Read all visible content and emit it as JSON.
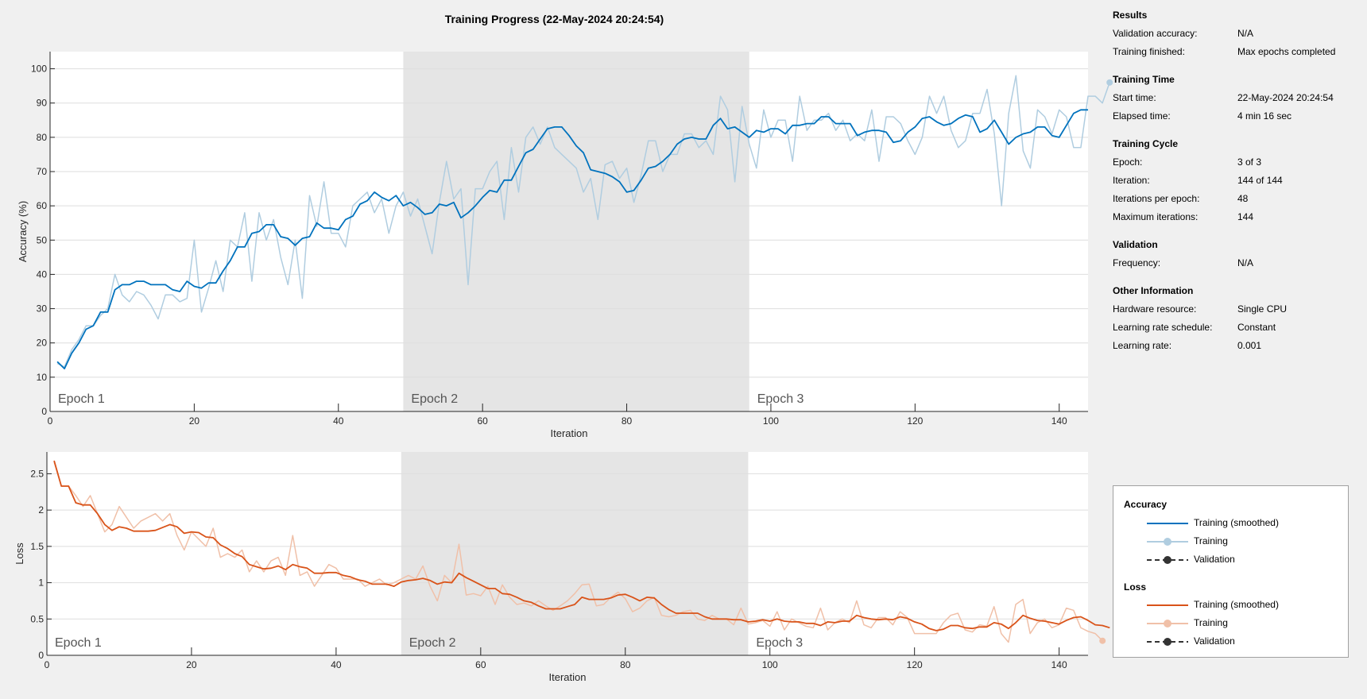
{
  "title": "Training Progress (22-May-2024 20:24:54)",
  "info": [
    {
      "title": "Results",
      "rows": [
        {
          "k": "Validation accuracy:",
          "v": "N/A"
        },
        {
          "k": "Training finished:",
          "v": "Max epochs completed"
        }
      ]
    },
    {
      "title": "Training Time",
      "rows": [
        {
          "k": "Start time:",
          "v": "22-May-2024 20:24:54"
        },
        {
          "k": "Elapsed time:",
          "v": "4 min 16 sec"
        }
      ]
    },
    {
      "title": "Training Cycle",
      "rows": [
        {
          "k": "Epoch:",
          "v": "3 of 3"
        },
        {
          "k": "Iteration:",
          "v": "144 of 144"
        },
        {
          "k": "Iterations per epoch:",
          "v": "48"
        },
        {
          "k": "Maximum iterations:",
          "v": "144"
        }
      ]
    },
    {
      "title": "Validation",
      "rows": [
        {
          "k": "Frequency:",
          "v": "N/A"
        }
      ]
    },
    {
      "title": "Other Information",
      "rows": [
        {
          "k": "Hardware resource:",
          "v": "Single CPU"
        },
        {
          "k": "Learning rate schedule:",
          "v": "Constant"
        },
        {
          "k": "Learning rate:",
          "v": "0.001"
        }
      ]
    }
  ],
  "legend": {
    "accuracy_title": "Accuracy",
    "accuracy_items": [
      "Training (smoothed)",
      "Training",
      "Validation"
    ],
    "loss_title": "Loss",
    "loss_items": [
      "Training (smoothed)",
      "Training",
      "Validation"
    ]
  },
  "colors": {
    "acc_smoothed": "#0072bd",
    "acc_raw": "#b0cde0",
    "loss_smoothed": "#d95319",
    "loss_raw": "#f0c0a8",
    "validation": "#333333",
    "epoch_shade": "#e5e5e5",
    "grid": "#dedede"
  },
  "chart_data": [
    {
      "type": "line",
      "name": "accuracy",
      "xlabel": "Iteration",
      "ylabel": "Accuracy (%)",
      "xlim": [
        0,
        144
      ],
      "ylim": [
        0,
        105
      ],
      "xticks": [
        0,
        20,
        40,
        60,
        80,
        100,
        120,
        140
      ],
      "yticks": [
        0,
        10,
        20,
        30,
        40,
        50,
        60,
        70,
        80,
        90,
        100
      ],
      "epochs": [
        {
          "label": "Epoch 1",
          "start": 0,
          "end": 49,
          "shaded": false
        },
        {
          "label": "Epoch 2",
          "start": 49,
          "end": 97,
          "shaded": true
        },
        {
          "label": "Epoch 3",
          "start": 97,
          "end": 144,
          "shaded": false
        }
      ],
      "series": [
        {
          "name": "Training (smoothed)",
          "x_start": 1,
          "values": [
            14.5,
            12.5,
            17,
            20,
            24,
            25,
            29,
            29,
            35.5,
            37,
            37,
            38,
            38,
            37,
            37,
            37,
            35.5,
            35,
            38,
            36.5,
            36,
            37.5,
            37.5,
            41,
            44,
            48,
            48,
            52,
            52.5,
            54.5,
            54.5,
            51,
            50.5,
            48.5,
            50.5,
            51,
            55,
            53.5,
            53.5,
            53,
            56,
            57,
            60.5,
            61.5,
            64,
            62.5,
            61.5,
            63,
            60,
            61,
            59.5,
            57.5,
            58,
            60.5,
            60,
            61,
            56.5,
            58,
            60,
            62.5,
            64.5,
            64,
            67.5,
            67.5,
            71.5,
            75.5,
            76.5,
            79.5,
            82.5,
            83,
            83,
            80.5,
            77.5,
            75.5,
            70.5,
            70,
            69.5,
            68.5,
            67,
            64,
            64.5,
            67.5,
            71,
            71.5,
            73,
            75,
            78,
            79.5,
            80,
            79.5,
            79.5,
            83.5,
            85.5,
            82.5,
            83,
            81.5,
            80,
            82,
            81.5,
            82.5,
            82.5,
            81,
            83.5,
            83.5,
            84,
            84,
            86,
            86,
            84,
            84,
            84,
            80.5,
            81.5,
            82,
            82,
            81.5,
            78.5,
            79,
            81.5,
            83,
            85.5,
            86,
            84.5,
            83.5,
            84,
            85.5,
            86.5,
            86,
            81.5,
            82.5,
            85,
            81.5,
            78,
            80,
            81,
            81.5,
            83,
            83,
            80.5,
            80,
            83.5,
            87,
            88,
            88
          ]
        },
        {
          "name": "Training",
          "x_start": 1,
          "values": [
            14,
            13,
            18,
            21,
            25,
            25,
            28,
            30,
            40,
            34,
            32,
            35,
            34,
            31,
            27,
            34,
            34,
            32,
            33,
            50,
            29,
            36,
            44,
            35,
            50,
            48,
            58,
            38,
            58,
            50,
            56,
            45,
            37,
            50,
            33,
            63,
            54,
            67,
            52,
            52,
            48,
            60,
            62,
            64,
            58,
            62,
            52,
            60,
            64,
            57,
            62,
            54,
            46,
            61,
            73,
            62,
            65,
            37,
            65,
            65,
            70,
            73,
            56,
            77,
            64,
            80,
            83,
            78,
            83,
            77,
            75,
            73,
            71,
            64,
            68,
            56,
            72,
            73,
            68,
            71,
            61,
            69,
            79,
            79,
            70,
            75,
            75,
            81,
            81,
            77,
            79,
            75,
            92,
            88,
            67,
            89,
            78,
            71,
            88,
            80,
            85,
            85,
            73,
            92,
            82,
            85,
            85,
            87,
            82,
            85,
            79,
            81,
            79,
            88,
            73,
            86,
            86,
            84,
            79,
            75,
            80,
            92,
            87,
            92,
            82,
            77,
            79,
            87,
            87,
            94,
            81,
            60,
            87,
            98,
            76,
            71,
            88,
            86,
            81,
            88,
            86,
            77,
            77,
            92,
            92,
            90,
            96
          ]
        },
        {
          "name": "Validation",
          "values": []
        }
      ]
    },
    {
      "type": "line",
      "name": "loss",
      "xlabel": "Iteration",
      "ylabel": "Loss",
      "xlim": [
        0,
        144
      ],
      "ylim": [
        0,
        2.8
      ],
      "xticks": [
        0,
        20,
        40,
        60,
        80,
        100,
        120,
        140
      ],
      "yticks": [
        0,
        0.5,
        1,
        1.5,
        2,
        2.5
      ],
      "ytick_labels": [
        "0",
        "0.5",
        "1",
        "1.5",
        "2",
        "2.5"
      ],
      "epochs": [
        {
          "label": "Epoch 1",
          "start": 0,
          "end": 49,
          "shaded": false
        },
        {
          "label": "Epoch 2",
          "start": 49,
          "end": 97,
          "shaded": true
        },
        {
          "label": "Epoch 3",
          "start": 97,
          "end": 144,
          "shaded": false
        }
      ],
      "series": [
        {
          "name": "Training (smoothed)",
          "x_start": 1,
          "values": [
            2.68,
            2.33,
            2.33,
            2.1,
            2.07,
            2.07,
            1.95,
            1.8,
            1.72,
            1.77,
            1.75,
            1.71,
            1.71,
            1.71,
            1.72,
            1.76,
            1.8,
            1.77,
            1.68,
            1.7,
            1.69,
            1.63,
            1.62,
            1.52,
            1.47,
            1.4,
            1.36,
            1.25,
            1.22,
            1.19,
            1.2,
            1.23,
            1.18,
            1.25,
            1.22,
            1.2,
            1.13,
            1.13,
            1.14,
            1.14,
            1.1,
            1.08,
            1.04,
            1.02,
            0.98,
            0.98,
            0.98,
            0.95,
            1.01,
            1.03,
            1.04,
            1.06,
            1.03,
            0.98,
            1.01,
            1.0,
            1.13,
            1.07,
            1.02,
            0.97,
            0.92,
            0.92,
            0.85,
            0.84,
            0.8,
            0.75,
            0.73,
            0.68,
            0.64,
            0.64,
            0.64,
            0.67,
            0.7,
            0.8,
            0.77,
            0.77,
            0.77,
            0.79,
            0.83,
            0.84,
            0.8,
            0.75,
            0.8,
            0.79,
            0.7,
            0.63,
            0.58,
            0.58,
            0.58,
            0.58,
            0.53,
            0.5,
            0.5,
            0.5,
            0.49,
            0.49,
            0.46,
            0.47,
            0.49,
            0.47,
            0.5,
            0.47,
            0.46,
            0.46,
            0.44,
            0.44,
            0.41,
            0.46,
            0.45,
            0.47,
            0.47,
            0.55,
            0.52,
            0.5,
            0.49,
            0.5,
            0.49,
            0.53,
            0.51,
            0.46,
            0.43,
            0.37,
            0.34,
            0.36,
            0.41,
            0.41,
            0.38,
            0.37,
            0.39,
            0.39,
            0.45,
            0.43,
            0.37,
            0.45,
            0.55,
            0.51,
            0.48,
            0.47,
            0.45,
            0.43,
            0.48,
            0.52,
            0.53,
            0.48,
            0.42,
            0.41,
            0.38
          ]
        },
        {
          "name": "Training",
          "x_start": 1,
          "values": [
            2.66,
            2.33,
            2.33,
            2.2,
            2.05,
            2.2,
            1.95,
            1.7,
            1.8,
            2.05,
            1.9,
            1.75,
            1.85,
            1.9,
            1.95,
            1.85,
            1.95,
            1.65,
            1.45,
            1.7,
            1.6,
            1.5,
            1.75,
            1.35,
            1.4,
            1.35,
            1.45,
            1.15,
            1.3,
            1.15,
            1.3,
            1.35,
            1.1,
            1.65,
            1.1,
            1.15,
            0.95,
            1.1,
            1.25,
            1.2,
            1.05,
            1.05,
            1.05,
            0.95,
            1.0,
            1.05,
            0.97,
            1.0,
            1.05,
            1.1,
            1.05,
            1.23,
            0.95,
            0.75,
            1.1,
            1.0,
            1.53,
            0.83,
            0.85,
            0.82,
            0.95,
            0.7,
            0.97,
            0.8,
            0.7,
            0.72,
            0.68,
            0.75,
            0.68,
            0.62,
            0.68,
            0.75,
            0.85,
            0.97,
            0.98,
            0.68,
            0.7,
            0.8,
            0.87,
            0.78,
            0.6,
            0.65,
            0.75,
            0.8,
            0.55,
            0.53,
            0.55,
            0.6,
            0.62,
            0.5,
            0.48,
            0.55,
            0.5,
            0.5,
            0.42,
            0.65,
            0.43,
            0.45,
            0.48,
            0.4,
            0.6,
            0.35,
            0.5,
            0.45,
            0.4,
            0.38,
            0.65,
            0.35,
            0.45,
            0.5,
            0.45,
            0.75,
            0.42,
            0.38,
            0.52,
            0.52,
            0.42,
            0.6,
            0.52,
            0.3,
            0.3,
            0.3,
            0.3,
            0.45,
            0.55,
            0.58,
            0.35,
            0.32,
            0.42,
            0.4,
            0.67,
            0.3,
            0.18,
            0.7,
            0.77,
            0.3,
            0.45,
            0.5,
            0.38,
            0.42,
            0.65,
            0.62,
            0.38,
            0.33,
            0.3,
            0.2
          ]
        },
        {
          "name": "Validation",
          "values": []
        }
      ]
    }
  ]
}
